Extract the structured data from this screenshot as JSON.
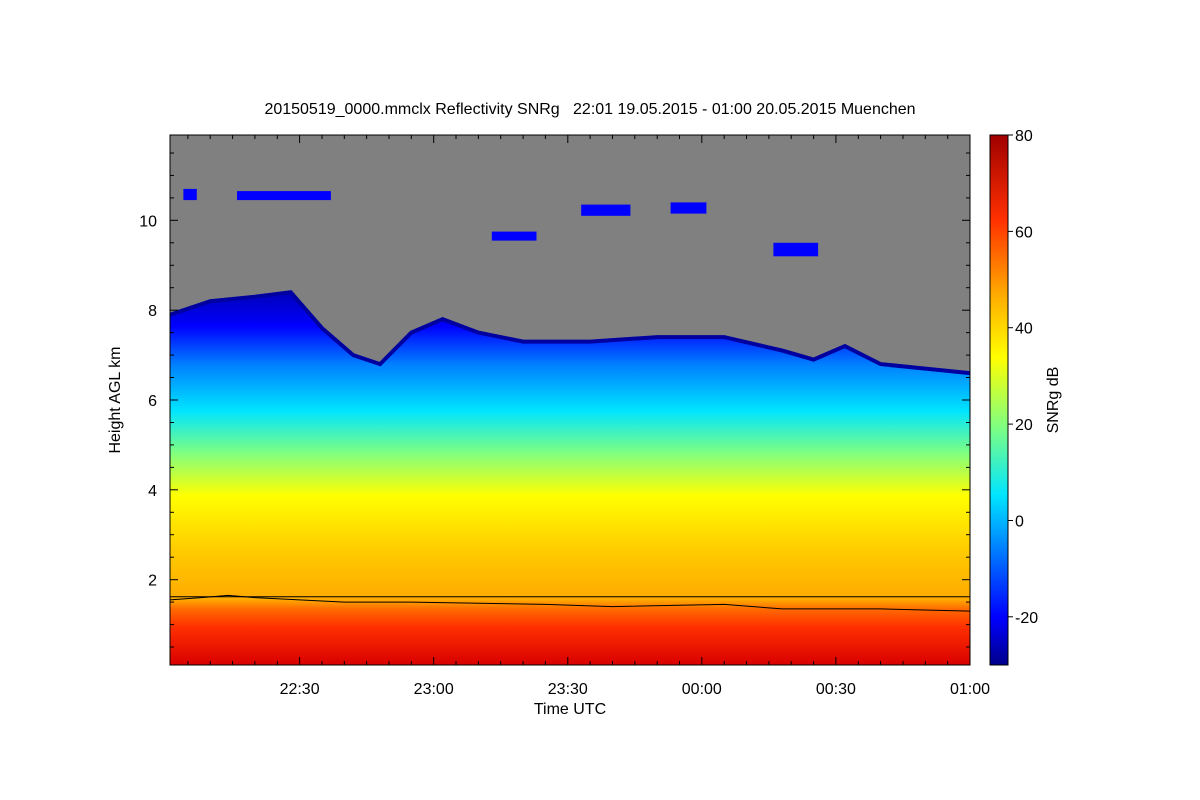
{
  "chart_data": {
    "type": "heatmap",
    "title": "20150519_0000.mmclx Reflectivity SNRg   22:01 19.05.2015 - 01:00 20.05.2015 Muenchen",
    "xlabel": "Time UTC",
    "ylabel": "Height AGL km",
    "x_tick_labels": [
      "22:30",
      "23:00",
      "23:30",
      "00:00",
      "00:30",
      "01:00"
    ],
    "x_ticks_min": [
      30,
      60,
      90,
      120,
      150,
      180
    ],
    "xlim_min": [
      1,
      180
    ],
    "y_ticks": [
      2,
      4,
      6,
      8,
      10
    ],
    "ylim": [
      0.1,
      11.9
    ],
    "colorbar": {
      "label": "SNRg dB",
      "ticks": [
        -20,
        0,
        20,
        40,
        60,
        80
      ],
      "range": [
        -30,
        80
      ]
    },
    "no_signal_color": "#808080",
    "echo_top_km": [
      [
        1,
        7.9
      ],
      [
        10,
        8.2
      ],
      [
        20,
        8.3
      ],
      [
        28,
        8.4
      ],
      [
        35,
        7.6
      ],
      [
        42,
        7.0
      ],
      [
        48,
        6.8
      ],
      [
        55,
        7.5
      ],
      [
        62,
        7.8
      ],
      [
        70,
        7.5
      ],
      [
        80,
        7.3
      ],
      [
        95,
        7.3
      ],
      [
        110,
        7.4
      ],
      [
        125,
        7.4
      ],
      [
        138,
        7.1
      ],
      [
        145,
        6.9
      ],
      [
        152,
        7.2
      ],
      [
        160,
        6.8
      ],
      [
        170,
        6.7
      ],
      [
        180,
        6.6
      ]
    ],
    "secondary_layers": [
      {
        "t0": 4,
        "t1": 7,
        "h0": 10.45,
        "h1": 10.7
      },
      {
        "t0": 16,
        "t1": 37,
        "h0": 10.45,
        "h1": 10.65
      },
      {
        "t0": 73,
        "t1": 83,
        "h0": 9.55,
        "h1": 9.75
      },
      {
        "t0": 93,
        "t1": 104,
        "h0": 10.1,
        "h1": 10.35
      },
      {
        "t0": 113,
        "t1": 121,
        "h0": 10.15,
        "h1": 10.4
      },
      {
        "t0": 136,
        "t1": 146,
        "h0": 9.2,
        "h1": 9.5
      }
    ],
    "boundary_layer_top_km": [
      [
        1,
        1.55
      ],
      [
        8,
        1.6
      ],
      [
        14,
        1.65
      ],
      [
        20,
        1.6
      ],
      [
        40,
        1.5
      ],
      [
        55,
        1.5
      ],
      [
        85,
        1.45
      ],
      [
        100,
        1.4
      ],
      [
        125,
        1.45
      ],
      [
        138,
        1.35
      ],
      [
        160,
        1.35
      ],
      [
        180,
        1.3
      ]
    ],
    "reference_line_km": 1.62,
    "colors": [
      "#00008b",
      "#0000ff",
      "#0080ff",
      "#00e5ff",
      "#80ff80",
      "#ffff00",
      "#ffaa00",
      "#ff3000",
      "#a00000"
    ]
  }
}
